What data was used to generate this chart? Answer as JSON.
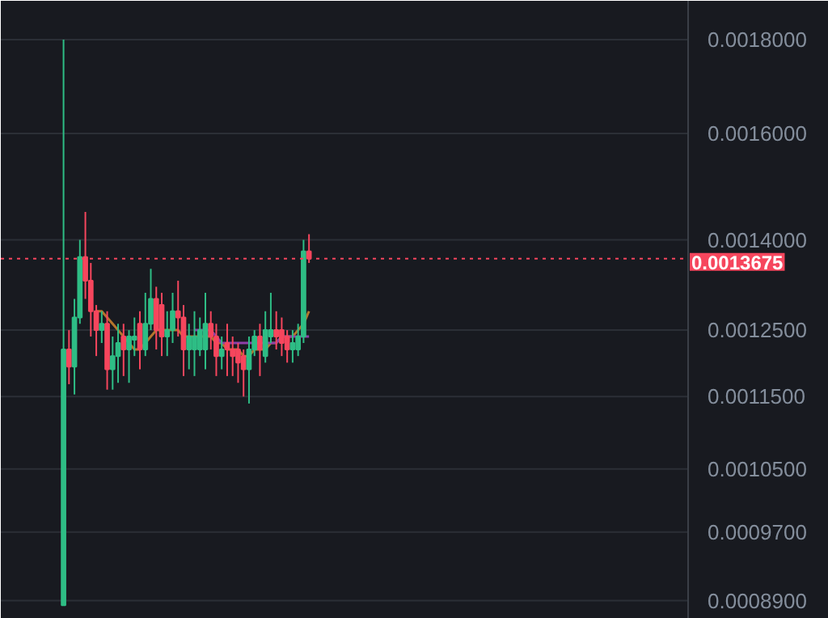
{
  "chart_data": {
    "type": "candlestick",
    "log": true,
    "grid": "y",
    "tick_labels": "y",
    "ylim": [
      0.00087,
      0.00189
    ],
    "yticks": [
      {
        "value": 0.00089,
        "label": "0.0008900"
      },
      {
        "value": 0.00097,
        "label": "0.0009700"
      },
      {
        "value": 0.00105,
        "label": "0.0010500"
      },
      {
        "value": 0.00115,
        "label": "0.0011500"
      },
      {
        "value": 0.00125,
        "label": "0.0012500"
      },
      {
        "value": 0.0014,
        "label": "0.0014000"
      },
      {
        "value": 0.0016,
        "label": "0.0016000"
      },
      {
        "value": 0.0018,
        "label": "0.0018000"
      }
    ],
    "ref_lines": [
      {
        "axis": "y",
        "value": 0.0013675,
        "label": "0.0013675",
        "color": "#f6465d",
        "line_style": "dotted"
      }
    ],
    "categories": [
      null,
      null,
      null,
      null,
      null,
      null,
      null,
      null,
      null,
      null,
      null,
      null,
      null,
      null,
      null,
      null,
      null,
      null,
      null,
      null,
      null,
      null,
      null,
      null,
      null,
      null,
      null,
      null,
      null,
      null,
      null,
      null,
      null,
      null,
      null,
      null,
      null,
      null,
      null,
      null,
      null,
      null,
      null,
      null,
      null,
      null,
      null,
      null,
      null,
      null,
      null,
      null,
      null,
      null,
      null,
      null,
      null,
      null,
      null,
      null,
      null,
      null,
      null,
      null,
      null,
      null,
      null,
      null,
      null,
      null,
      null,
      null,
      null,
      null,
      null,
      null,
      null,
      null,
      null,
      null,
      null,
      null,
      null,
      null,
      null,
      null,
      null,
      null,
      null,
      null,
      null,
      null,
      null,
      null,
      null,
      null,
      null,
      null,
      null,
      null,
      null,
      null,
      null,
      null,
      null,
      null,
      null,
      null,
      null,
      null,
      null,
      null,
      null,
      null,
      null,
      null,
      null,
      null,
      null,
      null,
      null,
      null,
      null,
      null,
      null,
      null
    ],
    "series": [
      {
        "type": "line",
        "color": "#b5762c",
        "values": [
          null,
          null,
          null,
          null,
          null,
          null,
          null,
          null,
          null,
          null,
          null,
          null,
          null,
          null,
          null,
          null,
          null,
          0.00128,
          0.00128,
          0.00127,
          0.00126,
          0.00125,
          0.00124,
          0.00123,
          0.00122,
          0.00122,
          0.00123,
          0.00124,
          0.00125,
          0.00125,
          0.00125,
          0.00125,
          0.00125,
          0.00124,
          0.00124,
          0.00124,
          0.00124,
          0.00124,
          0.00124,
          0.00123,
          0.00123,
          0.00122,
          0.00122,
          0.00122,
          0.00121,
          0.00121,
          0.00122,
          0.00122,
          0.00122,
          0.00123,
          0.00123,
          0.00124,
          0.00124,
          0.00124,
          0.00125,
          0.00126,
          0.00128,
          null,
          null,
          null,
          null,
          null,
          null,
          null,
          null,
          null,
          null,
          null,
          null,
          null,
          null,
          null,
          null,
          null,
          null,
          null,
          null,
          null,
          null,
          null,
          null,
          null,
          null,
          null,
          null,
          null,
          null,
          null,
          null,
          null,
          null,
          null,
          null,
          null,
          null,
          null,
          null,
          null,
          null,
          null,
          null,
          null,
          null,
          null,
          null,
          null,
          null,
          null,
          null,
          null,
          null,
          null,
          null,
          null,
          null,
          null,
          null,
          null,
          null,
          null,
          null,
          null,
          null,
          null,
          null,
          null
        ]
      },
      {
        "type": "line",
        "color": "#8e3fa8",
        "values": [
          null,
          null,
          null,
          null,
          null,
          null,
          null,
          null,
          null,
          null,
          null,
          null,
          null,
          null,
          null,
          null,
          null,
          null,
          null,
          null,
          null,
          null,
          null,
          null,
          null,
          null,
          null,
          null,
          null,
          null,
          null,
          null,
          null,
          null,
          null,
          0.00125,
          0.00125,
          0.00125,
          0.00125,
          0.00124,
          0.00123,
          0.00123,
          0.00123,
          0.00123,
          0.00123,
          0.00123,
          0.00123,
          0.00123,
          0.00123,
          0.00123,
          0.00123,
          0.00124,
          0.00124,
          0.00124,
          0.00124,
          0.00124,
          0.00124,
          null,
          null,
          null,
          null,
          null,
          null,
          null,
          null,
          null,
          null,
          null,
          null,
          null,
          null,
          null,
          null,
          null,
          null,
          null,
          null,
          null,
          null,
          null,
          null,
          null,
          null,
          null,
          null,
          null,
          null,
          null,
          null,
          null,
          null,
          null,
          null,
          null,
          null,
          null,
          null,
          null,
          null,
          null,
          null,
          null,
          null,
          null,
          null,
          null,
          null,
          null,
          null,
          null,
          null,
          null,
          null,
          null,
          null,
          null,
          null,
          null,
          null,
          null,
          null,
          null,
          null,
          null,
          null,
          null
        ]
      },
      {
        "colors": [
          null,
          null,
          null,
          null,
          null,
          null,
          null,
          null,
          null,
          null,
          null,
          "#2ebd85",
          "#f6465d",
          "#2ebd85",
          "#2ebd85",
          "#f6465d",
          "#f6465d",
          "#f6465d",
          "#2ebd85",
          "#f6465d",
          "#2ebd85",
          "#2ebd85",
          "#f6465d",
          "#2ebd85",
          "#2ebd85",
          "#f6465d",
          "#2ebd85",
          "#2ebd85",
          "#f6465d",
          "#f6465d",
          "#2ebd85",
          "#2ebd85",
          "#f6465d",
          "#f6465d",
          "#2ebd85",
          "#2ebd85",
          "#2ebd85",
          "#2ebd85",
          "#f6465d",
          "#f6465d",
          "#2ebd85",
          "#f6465d",
          "#f6465d",
          "#f6465d",
          "#f6465d",
          "#2ebd85",
          "#2ebd85",
          "#f6465d",
          "#2ebd85",
          "#2ebd85",
          "#f6465d",
          "#f6465d",
          "#f6465d",
          "#2ebd85",
          "#2ebd85",
          "#2ebd85",
          "#f6465d",
          null,
          null,
          null,
          null,
          null,
          null,
          null,
          null,
          null,
          null,
          null,
          null,
          null,
          null,
          null,
          null,
          null,
          null,
          null,
          null,
          null,
          null,
          null,
          null,
          null,
          null,
          null,
          null,
          null,
          null,
          null,
          null,
          null,
          null,
          null,
          null,
          null,
          null,
          null,
          null,
          null,
          null,
          null,
          null,
          null,
          null,
          null,
          null,
          null,
          null,
          null,
          null,
          null,
          null,
          null,
          null,
          null,
          null,
          null,
          null,
          null,
          null,
          null,
          null,
          null,
          null,
          null,
          null,
          null
        ],
        "ohlc": [
          null,
          null,
          null,
          null,
          null,
          null,
          null,
          null,
          null,
          null,
          null,
          [
            0.000885,
            0.0018,
            0.000885,
            0.00122
          ],
          [
            0.00122,
            0.00125,
            0.001168,
            0.001194
          ],
          [
            0.001194,
            0.0013,
            0.001153,
            0.00127
          ],
          [
            0.00127,
            0.0014,
            0.00126,
            0.00137
          ],
          [
            0.00137,
            0.00145,
            0.0013,
            0.00133
          ],
          [
            0.00133,
            0.00136,
            0.00124,
            0.00128
          ],
          [
            0.00128,
            0.00129,
            0.00121,
            0.00125
          ],
          [
            0.00125,
            0.00128,
            0.00123,
            0.00126
          ],
          [
            0.00126,
            0.00128,
            0.00116,
            0.00119
          ],
          [
            0.00119,
            0.00124,
            0.00116,
            0.00121
          ],
          [
            0.00121,
            0.00126,
            0.00117,
            0.00123
          ],
          [
            0.00124,
            0.00126,
            0.00118,
            0.00122
          ],
          [
            0.00122,
            0.00125,
            0.00117,
            0.00124
          ],
          [
            0.001235,
            0.00127,
            0.00121,
            0.00124
          ],
          [
            0.00126,
            0.00128,
            0.00119,
            0.00122
          ],
          [
            0.00122,
            0.00131,
            0.00121,
            0.00126
          ],
          [
            0.00126,
            0.00135,
            0.00125,
            0.0013
          ],
          [
            0.0013,
            0.00132,
            0.00122,
            0.00125
          ],
          [
            0.00129,
            0.00131,
            0.00121,
            0.00124
          ],
          [
            0.00124,
            0.00128,
            0.00121,
            0.00125
          ],
          [
            0.00125,
            0.00131,
            0.00123,
            0.00128
          ],
          [
            0.00128,
            0.00133,
            0.00124,
            0.00127
          ],
          [
            0.00127,
            0.00129,
            0.00118,
            0.00122
          ],
          [
            0.00122,
            0.00126,
            0.00119,
            0.00124
          ],
          [
            0.00122,
            0.00128,
            0.00118,
            0.00124
          ],
          [
            0.00122,
            0.00127,
            0.00121,
            0.00125
          ],
          [
            0.00122,
            0.00131,
            0.00119,
            0.00126
          ],
          [
            0.00126,
            0.00128,
            0.00122,
            0.00124
          ],
          [
            0.00124,
            0.00126,
            0.00118,
            0.00121
          ],
          [
            0.00121,
            0.00124,
            0.00119,
            0.00122
          ],
          [
            0.00123,
            0.00126,
            0.00118,
            0.00122
          ],
          [
            0.00122,
            0.00124,
            0.00118,
            0.00121
          ],
          [
            0.00122,
            0.00123,
            0.00117,
            0.0012
          ],
          [
            0.00121,
            0.00122,
            0.00115,
            0.00119
          ],
          [
            0.00119,
            0.00124,
            0.00114,
            0.00122
          ],
          [
            0.00122,
            0.00125,
            0.00121,
            0.00124
          ],
          [
            0.00124,
            0.00126,
            0.00118,
            0.00122
          ],
          [
            0.00121,
            0.00128,
            0.0012,
            0.00125
          ],
          [
            0.00124,
            0.00131,
            0.00123,
            0.00125
          ],
          [
            0.00125,
            0.00128,
            0.00122,
            0.00124
          ],
          [
            0.00125,
            0.00127,
            0.00121,
            0.00123
          ],
          [
            0.00124,
            0.00125,
            0.0012,
            0.00122
          ],
          [
            0.00122,
            0.00125,
            0.0012,
            0.00123
          ],
          [
            0.00122,
            0.00126,
            0.00121,
            0.00124
          ],
          [
            0.00124,
            0.0014,
            0.00123,
            0.00138
          ],
          [
            0.00138,
            0.00141,
            0.00136,
            0.0013675
          ],
          null,
          null,
          null,
          null,
          null,
          null,
          null,
          null,
          null,
          null,
          null,
          null,
          null,
          null,
          null,
          null,
          null,
          null,
          null,
          null,
          null,
          null,
          null,
          null,
          null,
          null,
          null,
          null,
          null,
          null,
          null,
          null,
          null,
          null,
          null,
          null,
          null,
          null,
          null,
          null,
          null,
          null,
          null,
          null,
          null,
          null,
          null,
          null,
          null,
          null,
          null,
          null,
          null,
          null,
          null,
          null,
          null,
          null,
          null,
          null,
          null,
          null,
          null,
          null,
          null,
          null,
          null,
          null,
          null
        ]
      }
    ]
  }
}
